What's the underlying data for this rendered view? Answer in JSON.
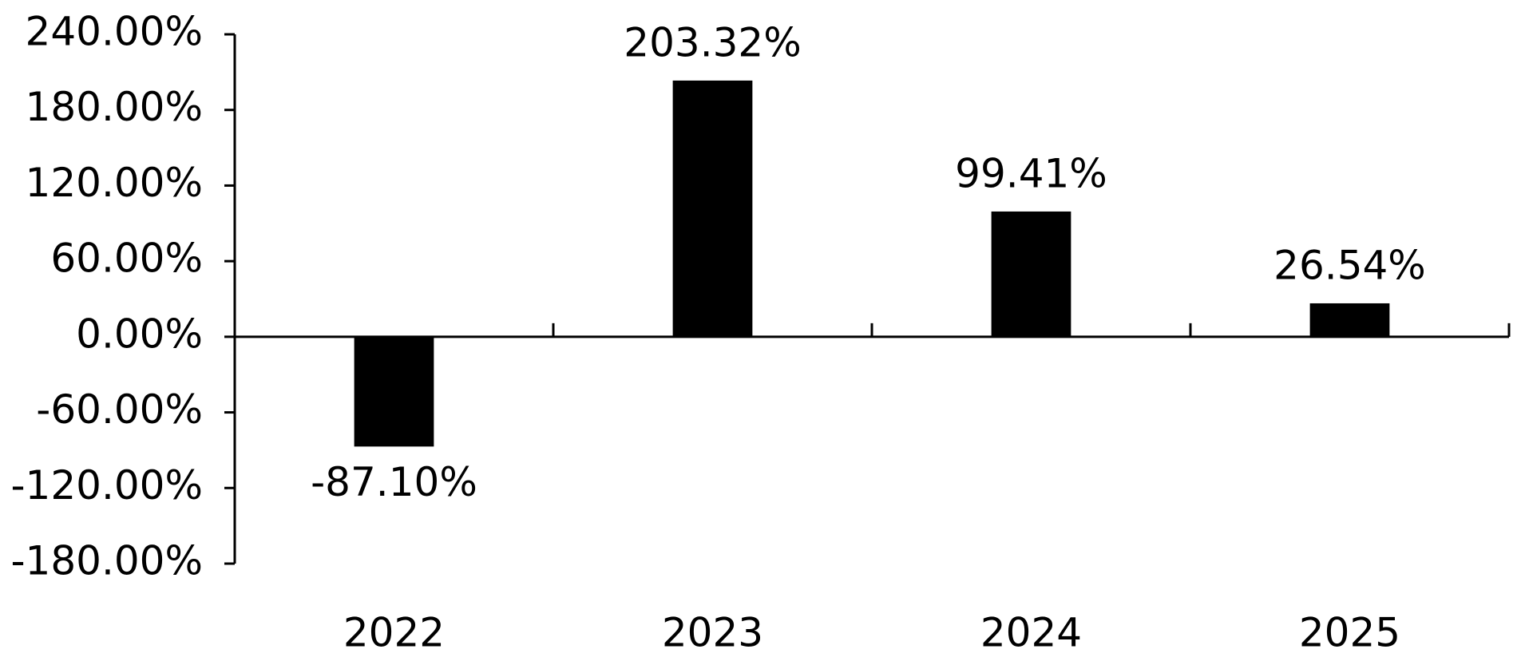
{
  "chart_data": {
    "type": "bar",
    "categories": [
      "2022",
      "2023",
      "2024",
      "2025"
    ],
    "values": [
      -87.1,
      203.32,
      99.41,
      26.54
    ],
    "value_labels": [
      "-87.10%",
      "203.32%",
      "99.41%",
      "26.54%"
    ],
    "color": "#000000",
    "ylim": [
      -180,
      240
    ],
    "yticks": [
      {
        "value": -180,
        "label": "-180.00%"
      },
      {
        "value": -120,
        "label": "-120.00%"
      },
      {
        "value": -60,
        "label": "-60.00%"
      },
      {
        "value": 0,
        "label": "0.00%"
      },
      {
        "value": 60,
        "label": "60.00%"
      },
      {
        "value": 120,
        "label": "120.00%"
      },
      {
        "value": 180,
        "label": "180.00%"
      },
      {
        "value": 240,
        "label": "240.00%"
      }
    ],
    "grid": false
  }
}
